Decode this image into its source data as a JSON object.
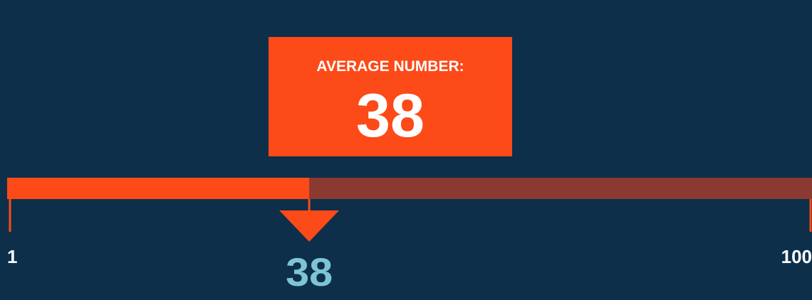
{
  "chart_data": {
    "type": "progress",
    "title": "AVERAGE NUMBER:",
    "value": 38,
    "xlim": [
      1,
      100
    ],
    "xticks": [
      1,
      100
    ],
    "color": "#fc4a18",
    "track_color": "#8a3a30",
    "value_label_color": "#7ec4d4"
  }
}
